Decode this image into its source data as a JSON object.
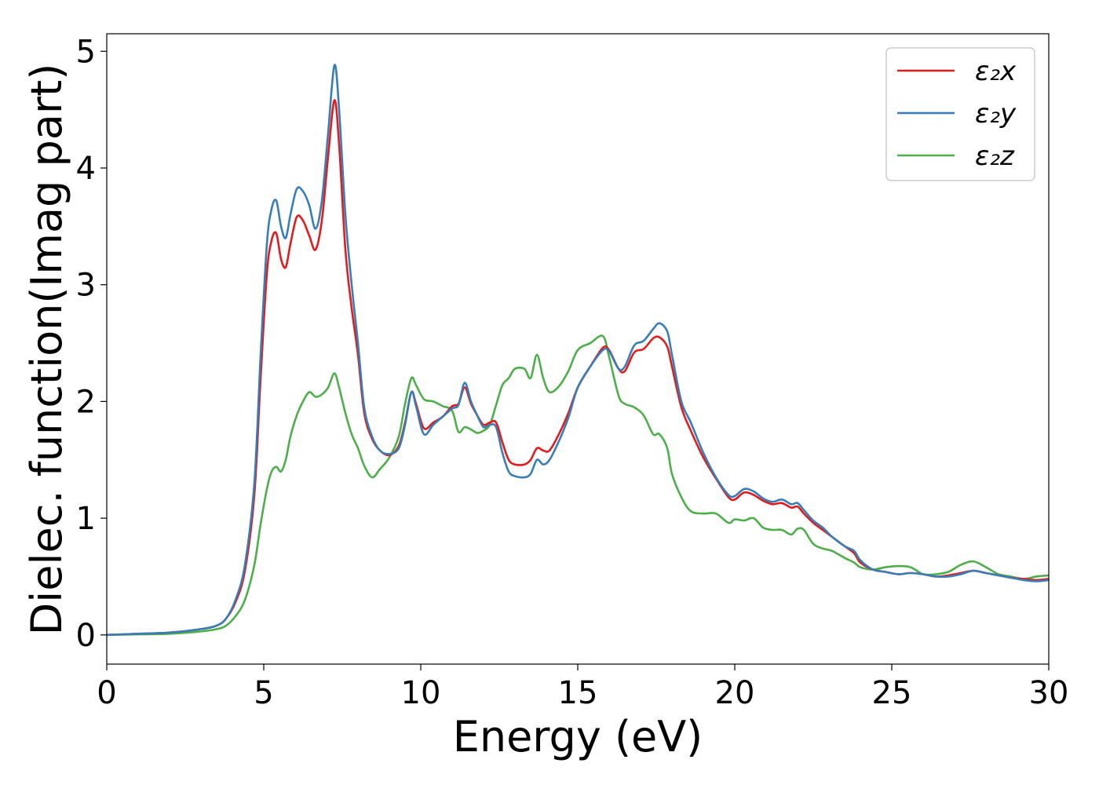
{
  "chart_data": {
    "type": "line",
    "xlabel": "Energy (eV)",
    "ylabel": "Dielec. function(Imag part)",
    "xlim": [
      0,
      30
    ],
    "ylim": [
      -0.25,
      5.15
    ],
    "xticks": [
      "0",
      "5",
      "10",
      "15",
      "20",
      "25",
      "30"
    ],
    "yticks": [
      "0",
      "1",
      "2",
      "3",
      "4",
      "5"
    ],
    "grid": false,
    "legend_position": "top-right",
    "series": [
      {
        "name": "ε₂x",
        "color": "#e41a1c",
        "x": [
          0,
          1,
          2,
          3,
          3.5,
          3.8,
          4.1,
          4.4,
          4.7,
          4.9,
          5.1,
          5.25,
          5.4,
          5.55,
          5.7,
          5.85,
          6.05,
          6.25,
          6.45,
          6.65,
          6.85,
          7.05,
          7.25,
          7.4,
          7.6,
          7.8,
          8.0,
          8.2,
          8.45,
          8.7,
          9.0,
          9.3,
          9.5,
          9.7,
          9.85,
          10.1,
          10.4,
          10.7,
          11.0,
          11.2,
          11.4,
          11.6,
          11.8,
          12.0,
          12.2,
          12.4,
          12.6,
          12.8,
          13.0,
          13.3,
          13.5,
          13.7,
          13.9,
          14.1,
          14.4,
          14.7,
          15.0,
          15.4,
          15.8,
          16.0,
          16.3,
          16.5,
          16.8,
          17.1,
          17.4,
          17.6,
          17.85,
          18.0,
          18.3,
          18.6,
          19.0,
          19.4,
          19.8,
          20.0,
          20.3,
          20.6,
          20.9,
          21.2,
          21.5,
          21.8,
          22.0,
          22.2,
          22.5,
          22.8,
          23.1,
          23.5,
          23.8,
          24.0,
          24.4,
          24.8,
          25.2,
          25.6,
          26.0,
          26.4,
          26.8,
          27.2,
          27.6,
          28.0,
          28.4,
          28.8,
          29.2,
          29.6,
          30.0
        ],
        "values": [
          0,
          0.01,
          0.02,
          0.05,
          0.08,
          0.14,
          0.28,
          0.55,
          1.2,
          2.2,
          3.1,
          3.38,
          3.44,
          3.22,
          3.15,
          3.35,
          3.58,
          3.55,
          3.42,
          3.3,
          3.55,
          4.1,
          4.58,
          4.2,
          3.3,
          2.8,
          2.4,
          1.9,
          1.68,
          1.58,
          1.54,
          1.62,
          1.82,
          2.08,
          1.98,
          1.77,
          1.82,
          1.87,
          1.96,
          1.98,
          2.12,
          1.98,
          1.88,
          1.8,
          1.82,
          1.82,
          1.65,
          1.5,
          1.46,
          1.46,
          1.5,
          1.6,
          1.58,
          1.58,
          1.72,
          1.9,
          2.12,
          2.3,
          2.46,
          2.44,
          2.28,
          2.26,
          2.42,
          2.45,
          2.54,
          2.55,
          2.47,
          2.3,
          1.95,
          1.75,
          1.52,
          1.34,
          1.18,
          1.16,
          1.22,
          1.2,
          1.15,
          1.12,
          1.13,
          1.09,
          1.1,
          1.04,
          0.96,
          0.9,
          0.84,
          0.76,
          0.7,
          0.62,
          0.56,
          0.54,
          0.52,
          0.53,
          0.52,
          0.5,
          0.51,
          0.53,
          0.55,
          0.53,
          0.51,
          0.49,
          0.48,
          0.47,
          0.48
        ]
      },
      {
        "name": "ε₂y",
        "color": "#377eb8",
        "x": [
          0,
          1,
          2,
          3,
          3.5,
          3.8,
          4.1,
          4.4,
          4.7,
          4.9,
          5.1,
          5.25,
          5.4,
          5.55,
          5.7,
          5.85,
          6.05,
          6.25,
          6.45,
          6.65,
          6.85,
          7.05,
          7.25,
          7.4,
          7.6,
          7.8,
          8.0,
          8.2,
          8.45,
          8.7,
          9.0,
          9.3,
          9.5,
          9.7,
          9.85,
          10.1,
          10.4,
          10.7,
          11.0,
          11.2,
          11.4,
          11.6,
          11.8,
          12.0,
          12.2,
          12.4,
          12.6,
          12.8,
          13.0,
          13.3,
          13.5,
          13.7,
          13.9,
          14.1,
          14.4,
          14.7,
          15.0,
          15.4,
          15.8,
          16.0,
          16.3,
          16.5,
          16.8,
          17.1,
          17.4,
          17.6,
          17.85,
          18.0,
          18.3,
          18.6,
          19.0,
          19.4,
          19.8,
          20.0,
          20.3,
          20.6,
          20.9,
          21.2,
          21.5,
          21.8,
          22.0,
          22.2,
          22.5,
          22.8,
          23.1,
          23.5,
          23.8,
          24.0,
          24.4,
          24.8,
          25.2,
          25.6,
          26.0,
          26.4,
          26.8,
          27.2,
          27.6,
          28.0,
          28.4,
          28.8,
          29.2,
          29.6,
          30.0
        ],
        "values": [
          0,
          0.01,
          0.02,
          0.05,
          0.08,
          0.14,
          0.3,
          0.6,
          1.3,
          2.4,
          3.35,
          3.65,
          3.72,
          3.5,
          3.4,
          3.6,
          3.82,
          3.8,
          3.68,
          3.48,
          3.72,
          4.3,
          4.88,
          4.5,
          3.6,
          3.0,
          2.5,
          1.95,
          1.7,
          1.58,
          1.55,
          1.6,
          1.8,
          2.08,
          1.96,
          1.72,
          1.8,
          1.87,
          1.94,
          1.97,
          2.16,
          2.0,
          1.88,
          1.78,
          1.8,
          1.78,
          1.56,
          1.4,
          1.36,
          1.35,
          1.38,
          1.5,
          1.46,
          1.5,
          1.66,
          1.86,
          2.12,
          2.3,
          2.44,
          2.43,
          2.28,
          2.3,
          2.48,
          2.52,
          2.62,
          2.67,
          2.6,
          2.4,
          2.0,
          1.82,
          1.56,
          1.35,
          1.2,
          1.19,
          1.25,
          1.23,
          1.17,
          1.14,
          1.16,
          1.12,
          1.13,
          1.07,
          0.98,
          0.92,
          0.84,
          0.76,
          0.72,
          0.64,
          0.56,
          0.54,
          0.52,
          0.53,
          0.52,
          0.5,
          0.5,
          0.52,
          0.55,
          0.53,
          0.51,
          0.49,
          0.47,
          0.46,
          0.47
        ]
      },
      {
        "name": "ε₂z",
        "color": "#4daf4a",
        "x": [
          0,
          1,
          2,
          3,
          3.5,
          3.8,
          4.1,
          4.4,
          4.7,
          4.9,
          5.1,
          5.25,
          5.4,
          5.55,
          5.7,
          5.85,
          6.05,
          6.25,
          6.45,
          6.65,
          6.85,
          7.05,
          7.25,
          7.4,
          7.6,
          7.8,
          8.0,
          8.2,
          8.45,
          8.7,
          9.0,
          9.3,
          9.5,
          9.7,
          9.85,
          10.1,
          10.4,
          10.7,
          11.0,
          11.2,
          11.4,
          11.6,
          11.8,
          12.0,
          12.2,
          12.4,
          12.6,
          12.8,
          13.0,
          13.3,
          13.5,
          13.7,
          13.9,
          14.1,
          14.4,
          14.7,
          15.0,
          15.4,
          15.8,
          16.0,
          16.3,
          16.5,
          16.8,
          17.1,
          17.4,
          17.6,
          17.85,
          18.0,
          18.3,
          18.6,
          19.0,
          19.4,
          19.8,
          20.0,
          20.3,
          20.6,
          20.9,
          21.2,
          21.5,
          21.8,
          22.0,
          22.2,
          22.5,
          22.8,
          23.1,
          23.5,
          23.8,
          24.0,
          24.4,
          24.8,
          25.2,
          25.6,
          26.0,
          26.4,
          26.8,
          27.2,
          27.6,
          28.0,
          28.4,
          28.8,
          29.2,
          29.6,
          30.0
        ],
        "values": [
          0,
          0.005,
          0.01,
          0.03,
          0.05,
          0.08,
          0.16,
          0.3,
          0.6,
          0.95,
          1.25,
          1.4,
          1.44,
          1.4,
          1.5,
          1.7,
          1.88,
          2.0,
          2.08,
          2.04,
          2.06,
          2.12,
          2.24,
          2.12,
          1.9,
          1.72,
          1.6,
          1.45,
          1.35,
          1.42,
          1.52,
          1.7,
          1.98,
          2.2,
          2.14,
          2.02,
          2.0,
          1.96,
          1.92,
          1.74,
          1.78,
          1.76,
          1.73,
          1.75,
          1.8,
          1.97,
          2.14,
          2.2,
          2.28,
          2.28,
          2.2,
          2.4,
          2.2,
          2.08,
          2.13,
          2.26,
          2.44,
          2.5,
          2.56,
          2.38,
          2.05,
          1.98,
          1.95,
          1.88,
          1.72,
          1.72,
          1.6,
          1.38,
          1.18,
          1.06,
          1.04,
          1.04,
          0.96,
          0.99,
          0.98,
          1.0,
          0.92,
          0.9,
          0.9,
          0.86,
          0.91,
          0.9,
          0.78,
          0.74,
          0.72,
          0.66,
          0.62,
          0.58,
          0.56,
          0.58,
          0.59,
          0.58,
          0.52,
          0.52,
          0.54,
          0.6,
          0.63,
          0.58,
          0.52,
          0.5,
          0.48,
          0.5,
          0.51
        ]
      }
    ]
  }
}
